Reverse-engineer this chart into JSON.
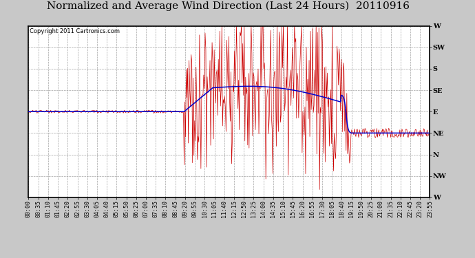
{
  "title": "Normalized and Average Wind Direction (Last 24 Hours)  20110916",
  "copyright": "Copyright 2011 Cartronics.com",
  "background_color": "#c8c8c8",
  "plot_bg_color": "#ffffff",
  "grid_color": "#999999",
  "y_labels": [
    "W",
    "SW",
    "S",
    "SE",
    "E",
    "NE",
    "N",
    "NW",
    "W"
  ],
  "y_values": [
    360,
    315,
    270,
    225,
    180,
    135,
    90,
    45,
    0
  ],
  "x_tick_labels": [
    "00:00",
    "00:35",
    "01:10",
    "01:45",
    "02:20",
    "02:55",
    "03:30",
    "04:05",
    "04:40",
    "05:15",
    "05:50",
    "06:25",
    "07:00",
    "07:35",
    "08:10",
    "08:45",
    "09:20",
    "09:55",
    "10:30",
    "11:05",
    "11:40",
    "12:15",
    "12:50",
    "13:25",
    "14:00",
    "14:35",
    "15:10",
    "15:45",
    "16:20",
    "16:55",
    "17:30",
    "18:05",
    "18:40",
    "19:15",
    "19:50",
    "20:25",
    "21:00",
    "21:35",
    "22:10",
    "22:45",
    "23:20",
    "23:55"
  ],
  "red_line_color": "#cc0000",
  "blue_line_color": "#0000cc",
  "title_fontsize": 11,
  "copyright_fontsize": 6,
  "tick_fontsize": 6,
  "figwidth": 6.9,
  "figheight": 3.75,
  "dpi": 100
}
